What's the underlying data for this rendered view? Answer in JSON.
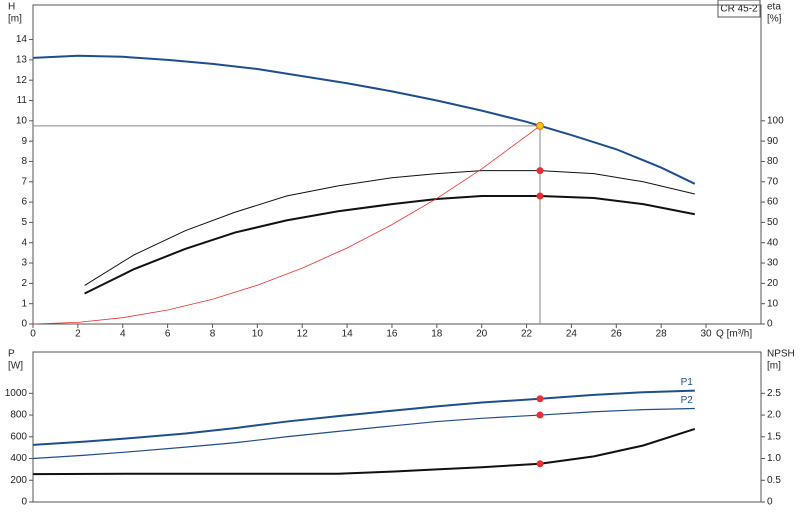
{
  "model": "CR 45-2",
  "chart_data": [
    {
      "type": "line",
      "ylabel": [
        "H",
        "[m]"
      ],
      "y2label": [
        "eta",
        "[%]"
      ],
      "xlabel": "Q [m³/h]",
      "xlim": [
        0,
        32.45
      ],
      "xticks": [
        0,
        2,
        4,
        6,
        8,
        10,
        12,
        14,
        16,
        18,
        20,
        22,
        24,
        26,
        28,
        30
      ],
      "ylim": [
        0,
        15.7
      ],
      "yticks": [
        0,
        1,
        2,
        3,
        4,
        5,
        6,
        7,
        8,
        9,
        10,
        11,
        12,
        13,
        14
      ],
      "y2lim": [
        0,
        157
      ],
      "y2ticks": [
        0,
        10,
        20,
        30,
        40,
        50,
        60,
        70,
        80,
        90,
        100
      ],
      "grid": false,
      "series": [
        {
          "color": "#1f4e8c",
          "width": 2,
          "x": [
            0,
            2,
            4,
            6,
            8,
            10,
            12,
            14,
            16,
            18,
            20,
            22,
            24,
            26,
            28,
            29.5
          ],
          "values": [
            13.1,
            13.2,
            13.15,
            13.0,
            12.8,
            12.55,
            12.2,
            11.85,
            11.45,
            11.0,
            10.5,
            9.95,
            9.3,
            8.6,
            7.7,
            6.9
          ]
        },
        {
          "color": "#111111",
          "width": 1,
          "axis": "y2",
          "x": [
            2.3,
            4.5,
            6.8,
            9,
            11.3,
            13.6,
            16,
            18,
            20,
            22.6,
            25,
            27.2,
            29.5
          ],
          "values": [
            19,
            34,
            46,
            55,
            63,
            68,
            72,
            74,
            75.5,
            75.5,
            74,
            70,
            64
          ]
        },
        {
          "color": "#111111",
          "width": 2,
          "axis": "y2",
          "x": [
            2.3,
            4.5,
            6.8,
            9,
            11.3,
            13.6,
            16,
            18,
            20,
            22.6,
            25,
            27.2,
            29.5
          ],
          "values": [
            15,
            27,
            37,
            45,
            51,
            55.5,
            59,
            61.5,
            63,
            63,
            62,
            59,
            54
          ]
        },
        {
          "color": "#e83030",
          "width": 0.8,
          "x": [
            0,
            2,
            4,
            6,
            8,
            10,
            12,
            14,
            16,
            18,
            20,
            22.6
          ],
          "values": [
            0,
            0.08,
            0.31,
            0.69,
            1.22,
            1.91,
            2.75,
            3.74,
            4.89,
            6.18,
            7.63,
            9.75
          ]
        },
        {
          "style": "marker",
          "guides": true,
          "color": "#f5c518",
          "x": [
            22.6
          ],
          "values": [
            9.75
          ]
        },
        {
          "style": "marker",
          "color": "#e83030",
          "axis": "y2",
          "x": [
            22.6
          ],
          "values": [
            75.5
          ]
        },
        {
          "style": "marker",
          "color": "#e83030",
          "axis": "y2",
          "x": [
            22.6
          ],
          "values": [
            63
          ]
        }
      ]
    },
    {
      "type": "line",
      "ylabel": [
        "P",
        "[W]"
      ],
      "y2label": [
        "NPSH",
        "[m]"
      ],
      "xlim": [
        0,
        32.45
      ],
      "ylim": [
        0,
        1380
      ],
      "yticks": [
        0,
        200,
        400,
        600,
        800,
        1000
      ],
      "y2lim": [
        0,
        3.45
      ],
      "y2ticks": [
        0,
        0.5,
        {
          "value": 1,
          "label": "1.0"
        },
        1.5,
        {
          "value": 2,
          "label": "2.0"
        },
        2.5
      ],
      "grid": false,
      "series": [
        {
          "name": "P1",
          "color": "#1f4e8c",
          "width": 2,
          "x": [
            0,
            2.3,
            4.5,
            6.8,
            9,
            11.3,
            13.6,
            16,
            18,
            20,
            22.6,
            25,
            27.2,
            29.5
          ],
          "values": [
            525,
            555,
            590,
            630,
            680,
            740,
            790,
            840,
            880,
            915,
            950,
            985,
            1010,
            1025
          ]
        },
        {
          "name": "P2",
          "color": "#1f4e8c",
          "width": 1.2,
          "x": [
            0,
            2.3,
            4.5,
            6.8,
            9,
            11.3,
            13.6,
            16,
            18,
            20,
            22.6,
            25,
            27.2,
            29.5
          ],
          "values": [
            400,
            430,
            465,
            505,
            545,
            600,
            650,
            700,
            740,
            770,
            800,
            830,
            850,
            860
          ]
        },
        {
          "color": "#111111",
          "width": 2,
          "axis": "y2",
          "x": [
            0,
            4.5,
            9,
            13.6,
            16,
            18,
            20,
            22.6,
            25,
            27.2,
            29.5
          ],
          "values": [
            0.64,
            0.65,
            0.65,
            0.65,
            0.7,
            0.75,
            0.8,
            0.88,
            1.05,
            1.3,
            1.68
          ]
        },
        {
          "style": "marker",
          "color": "#e83030",
          "x": [
            22.6
          ],
          "values": [
            950
          ]
        },
        {
          "style": "marker",
          "color": "#e83030",
          "x": [
            22.6
          ],
          "values": [
            800
          ]
        },
        {
          "style": "marker",
          "color": "#e83030",
          "axis": "y2",
          "x": [
            22.6
          ],
          "values": [
            0.88
          ]
        }
      ]
    }
  ]
}
